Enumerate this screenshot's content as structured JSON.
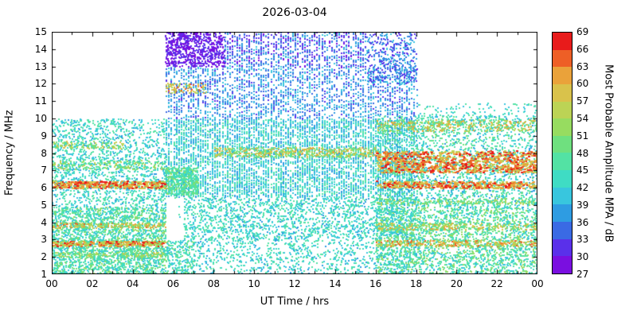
{
  "chart_data": {
    "type": "heatmap",
    "title": "2026-03-04",
    "xlabel": "UT Time / hrs",
    "ylabel": "Frequency / MHz",
    "xlim": [
      0,
      24
    ],
    "ylim": [
      1,
      15
    ],
    "grid": false,
    "x_ticks": {
      "values": [
        0,
        2,
        4,
        6,
        8,
        10,
        12,
        14,
        16,
        18,
        20,
        22,
        24
      ],
      "labels": [
        "00",
        "02",
        "04",
        "06",
        "08",
        "10",
        "12",
        "14",
        "16",
        "18",
        "20",
        "22",
        "00"
      ]
    },
    "y_ticks": [
      1,
      2,
      3,
      4,
      5,
      6,
      7,
      8,
      9,
      10,
      11,
      12,
      13,
      14,
      15
    ],
    "colorbar": {
      "label": "Most Probable Amplitude MPA / dB",
      "vmin": 27,
      "vmax": 69,
      "tick_step": 3,
      "ticks": [
        27,
        30,
        33,
        36,
        39,
        42,
        45,
        48,
        51,
        54,
        57,
        60,
        63,
        66,
        69
      ],
      "colors": [
        "#7a0fe0",
        "#5a30ea",
        "#3a6ae4",
        "#2e9ce2",
        "#38c6de",
        "#3fdcc4",
        "#53e2a4",
        "#6fe07f",
        "#97dc60",
        "#bcd355",
        "#d9c24b",
        "#eaa23a",
        "#ee5f26",
        "#e81b1b"
      ]
    },
    "seed": 20260304,
    "point_size": 2,
    "regions": [
      {
        "t": [
          0,
          5.6
        ],
        "f": [
          1,
          4.9
        ],
        "n": 2600,
        "a": [
          39,
          52
        ]
      },
      {
        "t": [
          0,
          5.6
        ],
        "f": [
          4.9,
          10
        ],
        "n": 1500,
        "a": [
          38,
          48
        ]
      },
      {
        "t": [
          0,
          5.6
        ],
        "f": [
          7.1,
          7.6
        ],
        "n": 200,
        "a": [
          44,
          58
        ]
      },
      {
        "t": [
          0,
          3.5
        ],
        "f": [
          8.3,
          8.7
        ],
        "n": 100,
        "a": [
          46,
          60
        ]
      },
      {
        "t": [
          0,
          5.6
        ],
        "f": [
          2.05,
          2.3
        ],
        "n": 180,
        "a": [
          45,
          58
        ]
      },
      {
        "t": [
          0,
          5.6
        ],
        "f": [
          3.7,
          4.0
        ],
        "n": 240,
        "a": [
          48,
          64
        ]
      },
      {
        "t": [
          0,
          5.6
        ],
        "f": [
          2.65,
          2.95
        ],
        "n": 300,
        "a": [
          52,
          69
        ],
        "s": 3
      },
      {
        "t": [
          0,
          5.6
        ],
        "f": [
          6.0,
          6.4
        ],
        "n": 380,
        "a": [
          55,
          69
        ],
        "s": 3
      },
      {
        "t": [
          5.6,
          18
        ],
        "f": [
          5.5,
          10
        ],
        "n": 5200,
        "a": [
          36,
          47
        ],
        "quantx": true
      },
      {
        "t": [
          5.6,
          18
        ],
        "f": [
          10,
          13
        ],
        "n": 2000,
        "a": [
          32,
          42
        ],
        "quantx": true
      },
      {
        "t": [
          5.6,
          8.5
        ],
        "f": [
          13,
          15
        ],
        "n": 750,
        "a": [
          27,
          33
        ]
      },
      {
        "t": [
          8.5,
          15.5
        ],
        "f": [
          13,
          15
        ],
        "n": 900,
        "a": [
          29,
          40
        ],
        "quantx": true
      },
      {
        "t": [
          15.5,
          18
        ],
        "f": [
          12,
          15
        ],
        "n": 420,
        "a": [
          30,
          41
        ]
      },
      {
        "t": [
          6.5,
          18
        ],
        "f": [
          3,
          5.5
        ],
        "n": 1700,
        "a": [
          38,
          48
        ]
      },
      {
        "t": [
          7,
          18
        ],
        "f": [
          1,
          3
        ],
        "n": 800,
        "a": [
          38,
          48
        ]
      },
      {
        "t": [
          5.6,
          7.0
        ],
        "f": [
          1,
          3
        ],
        "n": 260,
        "a": [
          39,
          50
        ]
      },
      {
        "t": [
          5.6,
          7.2
        ],
        "f": [
          5.6,
          7.2
        ],
        "n": 500,
        "a": [
          42,
          52
        ]
      },
      {
        "t": [
          8,
          16
        ],
        "f": [
          7.8,
          8.35
        ],
        "n": 500,
        "a": [
          46,
          62
        ]
      },
      {
        "t": [
          5.6,
          7.6
        ],
        "f": [
          11.5,
          12.05
        ],
        "n": 90,
        "a": [
          52,
          66
        ]
      },
      {
        "t": [
          0,
          24
        ],
        "f": [
          1,
          10
        ],
        "n": 600,
        "a": [
          39,
          48
        ]
      },
      {
        "t": [
          16,
          24
        ],
        "f": [
          1,
          4.9
        ],
        "n": 2400,
        "a": [
          39,
          53
        ]
      },
      {
        "t": [
          16,
          24
        ],
        "f": [
          4.9,
          10.2
        ],
        "n": 2000,
        "a": [
          38,
          50
        ]
      },
      {
        "t": [
          18,
          24
        ],
        "f": [
          10,
          10.9
        ],
        "n": 120,
        "a": [
          40,
          48
        ]
      },
      {
        "t": [
          16,
          24
        ],
        "f": [
          5.05,
          5.4
        ],
        "n": 220,
        "a": [
          44,
          57
        ]
      },
      {
        "t": [
          16,
          24
        ],
        "f": [
          3.6,
          4.0
        ],
        "n": 300,
        "a": [
          47,
          62
        ]
      },
      {
        "t": [
          16,
          24
        ],
        "f": [
          2.65,
          3.0
        ],
        "n": 320,
        "a": [
          50,
          66
        ]
      },
      {
        "t": [
          16,
          24
        ],
        "f": [
          9.3,
          9.95
        ],
        "n": 380,
        "a": [
          47,
          63
        ]
      },
      {
        "t": [
          16,
          24
        ],
        "f": [
          6.0,
          6.4
        ],
        "n": 420,
        "a": [
          55,
          69
        ],
        "s": 3
      },
      {
        "t": [
          16,
          24
        ],
        "f": [
          6.9,
          8.15
        ],
        "n": 950,
        "a": [
          55,
          69
        ],
        "s": 3
      }
    ]
  }
}
